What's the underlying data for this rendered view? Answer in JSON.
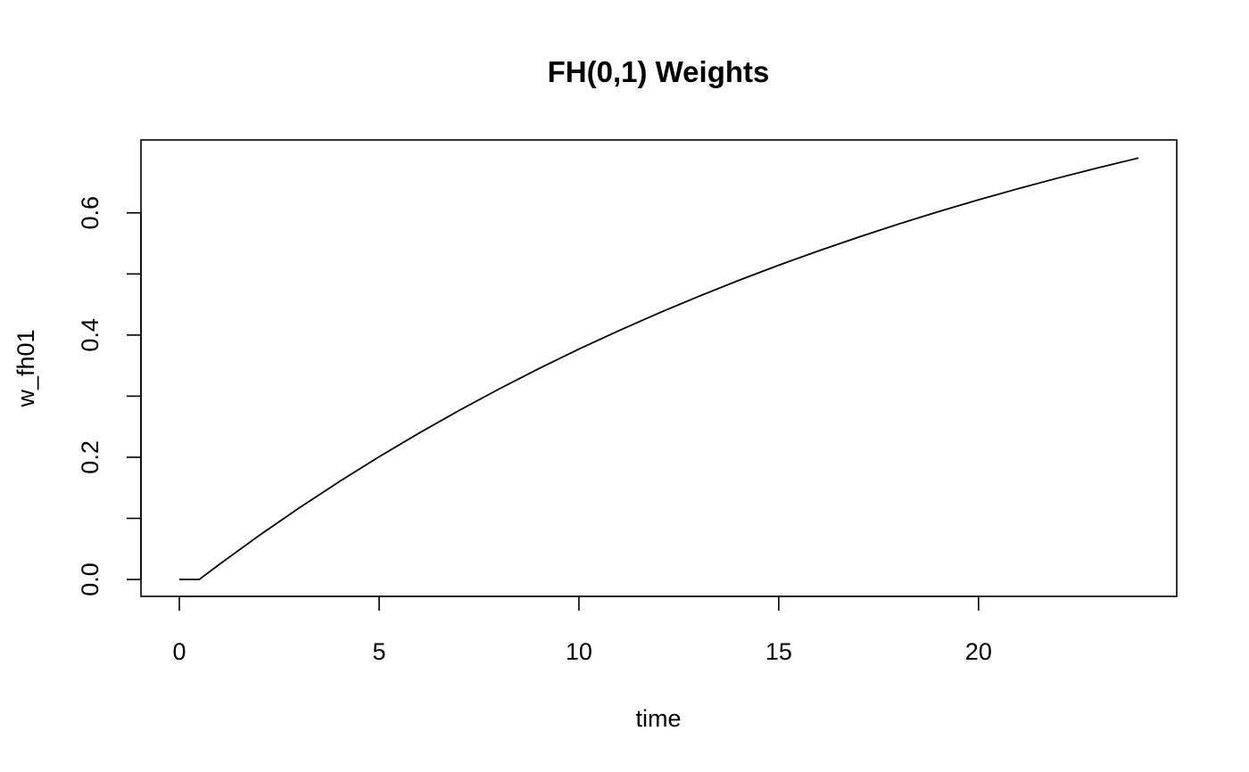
{
  "chart_data": {
    "type": "line",
    "title": "FH(0,1) Weights",
    "x_label": "time",
    "y_label": "w_fh01",
    "x": [
      0,
      0.5,
      1,
      2,
      3,
      4,
      5,
      6,
      7,
      8,
      9,
      10,
      11,
      12,
      13,
      14,
      15,
      16,
      17,
      18,
      19,
      20,
      21,
      22,
      23,
      24
    ],
    "series": [
      {
        "name": "w_fh01",
        "color": "#000000",
        "values": [
          0,
          0,
          0.0246,
          0.072,
          0.1171,
          0.16,
          0.2008,
          0.2396,
          0.2765,
          0.3117,
          0.3451,
          0.377,
          0.4072,
          0.436,
          0.4634,
          0.4895,
          0.5143,
          0.5378,
          0.5603,
          0.5817,
          0.602,
          0.6213,
          0.6397,
          0.6572,
          0.6739,
          0.6897
        ]
      }
    ],
    "xlim": [
      -0.96,
      24.96
    ],
    "xticks": [
      0,
      5,
      10,
      15,
      20
    ],
    "ylim": [
      -0.0277,
      0.7193
    ],
    "yticks": [
      {
        "value": 0,
        "label": "0.0"
      },
      {
        "value": 0.1,
        "label": null
      },
      {
        "value": 0.2,
        "label": "0.2"
      },
      {
        "value": 0.3,
        "label": null
      },
      {
        "value": 0.4,
        "label": "0.4"
      },
      {
        "value": 0.5,
        "label": null
      },
      {
        "value": 0.6,
        "label": "0.6"
      }
    ],
    "grid": false
  }
}
